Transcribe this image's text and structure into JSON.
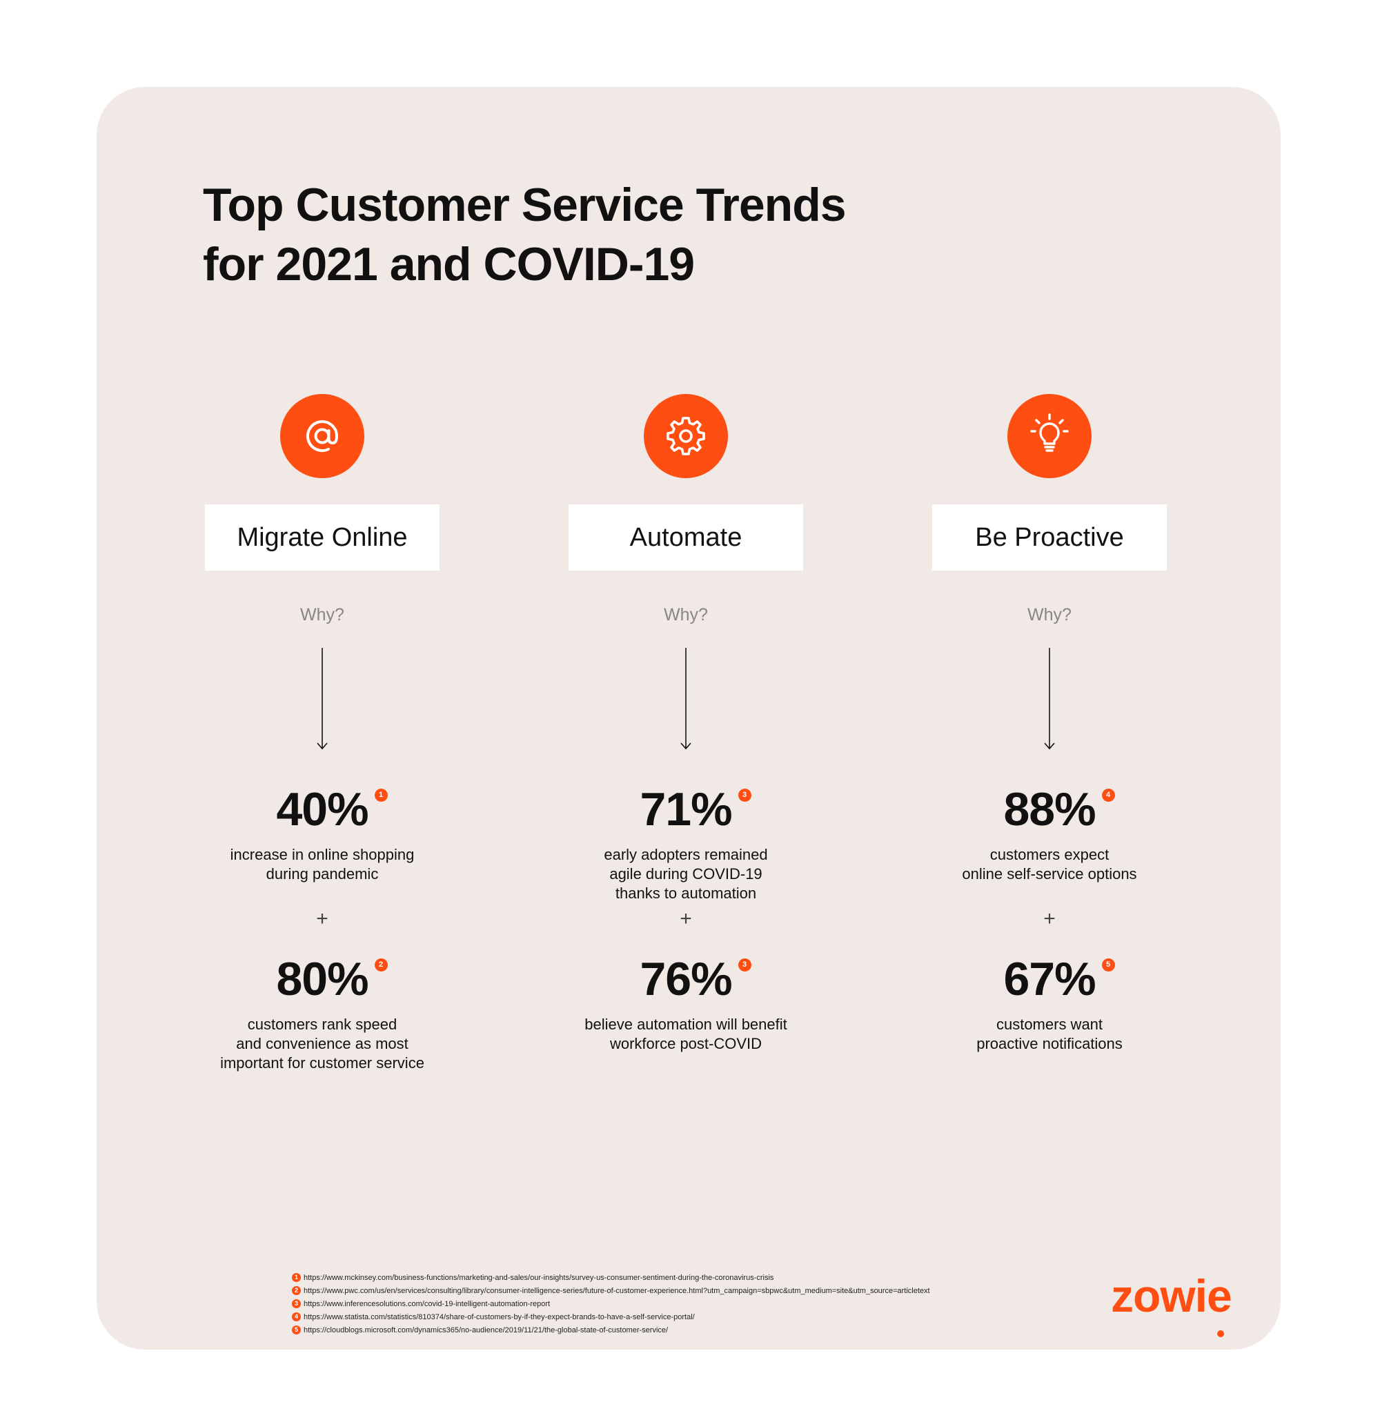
{
  "title": {
    "line1": "Top Customer Service Trends",
    "line2": "for 2021 and COVID-19"
  },
  "brand": {
    "logo_text": "zowie",
    "accent_color": "#ff4e12",
    "card_color": "#f1e9e5"
  },
  "columns": [
    {
      "icon": "at-sign-icon",
      "trend": "Migrate Online",
      "why": "Why?",
      "stat1": {
        "value": "40%",
        "ref": "1",
        "desc": [
          "increase in online shopping",
          "during pandemic"
        ]
      },
      "plus": "+",
      "stat2": {
        "value": "80%",
        "ref": "2",
        "desc": [
          "customers rank speed",
          "and convenience as most",
          "important for customer service"
        ]
      }
    },
    {
      "icon": "gear-icon",
      "trend": "Automate",
      "why": "Why?",
      "stat1": {
        "value": "71%",
        "ref": "3",
        "desc": [
          "early adopters remained",
          "agile during COVID-19",
          "thanks to automation"
        ]
      },
      "plus": "+",
      "stat2": {
        "value": "76%",
        "ref": "3",
        "desc": [
          "believe automation will benefit",
          "workforce post-COVID"
        ]
      }
    },
    {
      "icon": "lightbulb-icon",
      "trend": "Be Proactive",
      "why": "Why?",
      "stat1": {
        "value": "88%",
        "ref": "4",
        "desc": [
          "customers expect",
          "online self-service options"
        ]
      },
      "plus": "+",
      "stat2": {
        "value": "67%",
        "ref": "5",
        "desc": [
          "customers want",
          "proactive notifications"
        ]
      }
    }
  ],
  "sources": [
    {
      "num": "1",
      "url": "https://www.mckinsey.com/business-functions/marketing-and-sales/our-insights/survey-us-consumer-sentiment-during-the-coronavirus-crisis"
    },
    {
      "num": "2",
      "url": "https://www.pwc.com/us/en/services/consulting/library/consumer-intelligence-series/future-of-customer-experience.html?utm_campaign=sbpwc&utm_medium=site&utm_source=articletext"
    },
    {
      "num": "3",
      "url": "https://www.inferencesolutions.com/covid-19-intelligent-automation-report"
    },
    {
      "num": "4",
      "url": "https://www.statista.com/statistics/810374/share-of-customers-by-if-they-expect-brands-to-have-a-self-service-portal/"
    },
    {
      "num": "5",
      "url": "https://cloudblogs.microsoft.com/dynamics365/no-audience/2019/11/21/the-global-state-of-customer-service/"
    }
  ]
}
